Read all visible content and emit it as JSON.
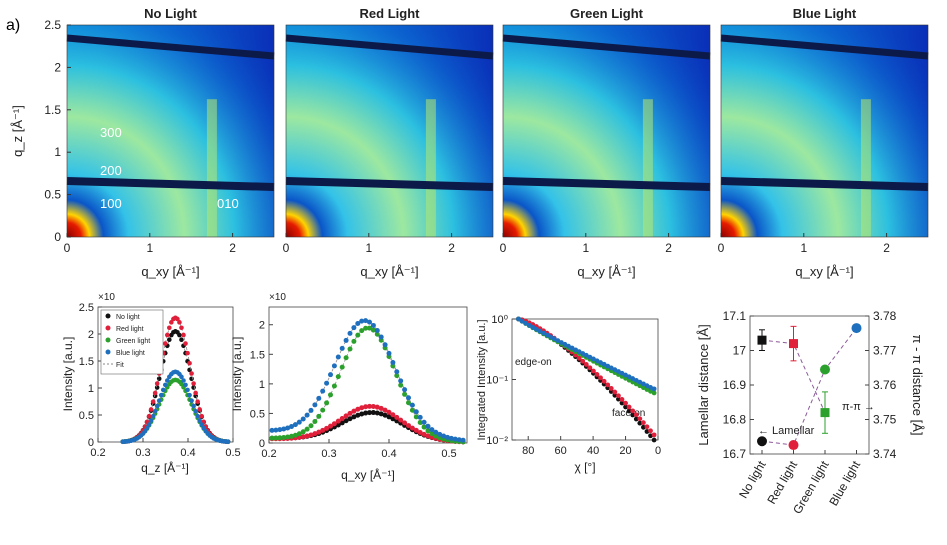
{
  "figure": {
    "panel_label": "a)",
    "heatmap_titles": [
      "No Light",
      "Red Light",
      "Green Light",
      "Blue Light"
    ],
    "heatmap_xlabel": "q_xy [Å⁻¹]",
    "heatmap_ylabel": "q_z [Å⁻¹]",
    "peak_labels": [
      "300",
      "200",
      "100",
      "010"
    ],
    "colors": {
      "no_light": "#111111",
      "red_light": "#e0203a",
      "green_light": "#2ca02c",
      "blue_light": "#1f6fbf",
      "fit": "#888888"
    }
  },
  "chart_data": [
    {
      "id": "giwaxs-maps",
      "type": "heatmap",
      "panels": [
        "No Light",
        "Red Light",
        "Green Light",
        "Blue Light"
      ],
      "xlabel": "q_xy [Å⁻¹]",
      "ylabel": "q_z [Å⁻¹]",
      "xlim": [
        0,
        2.5
      ],
      "ylim": [
        0,
        2.5
      ],
      "xticks": [
        "0",
        "1",
        "2"
      ],
      "yticks": [
        "0",
        "0.5",
        "1",
        "1.5",
        "2",
        "2.5"
      ],
      "annotations": [
        "300",
        "200",
        "100",
        "010"
      ]
    },
    {
      "id": "qz-linecut",
      "type": "scatter",
      "xlabel": "q_z [Å⁻¹]",
      "ylabel": "Intensity [a.u.]",
      "multiplier": "×10",
      "xlim": [
        0.2,
        0.5
      ],
      "ylim": [
        0,
        2.5
      ],
      "xticks": [
        "0.2",
        "0.3",
        "0.4",
        "0.5"
      ],
      "yticks": [
        "0",
        "0.5",
        "1",
        "1.5",
        "2",
        "2.5"
      ],
      "legend": [
        "No light",
        "Red light",
        "Green light",
        "Blue light",
        "Fit"
      ],
      "series": [
        {
          "name": "No light",
          "center": 0.372,
          "amplitude": 2.05,
          "width": 0.034
        },
        {
          "name": "Red light",
          "center": 0.372,
          "amplitude": 2.3,
          "width": 0.033
        },
        {
          "name": "Green light",
          "center": 0.372,
          "amplitude": 1.15,
          "width": 0.036
        },
        {
          "name": "Blue light",
          "center": 0.372,
          "amplitude": 1.3,
          "width": 0.035
        }
      ]
    },
    {
      "id": "qxy-linecut",
      "type": "scatter",
      "xlabel": "q_xy [Å⁻¹]",
      "ylabel": "Intensity [a.u.]",
      "multiplier": "×10",
      "xlim": [
        0.2,
        0.53
      ],
      "ylim": [
        0,
        2.3
      ],
      "xticks": [
        "0.2",
        "0.3",
        "0.4",
        "0.5"
      ],
      "yticks": [
        "0",
        "0.5",
        "1",
        "1.5",
        "2"
      ],
      "series": [
        {
          "name": "No light",
          "center": 0.372,
          "amplitude": 0.47,
          "width": 0.05,
          "baseline": 0.08
        },
        {
          "name": "Red light",
          "center": 0.37,
          "amplitude": 0.58,
          "width": 0.05,
          "baseline": 0.07
        },
        {
          "name": "Green light",
          "center": 0.365,
          "amplitude": 1.9,
          "width": 0.046,
          "baseline": 0.08
        },
        {
          "name": "Blue light",
          "center": 0.36,
          "amplitude": 1.95,
          "width": 0.05,
          "baseline": 0.2
        }
      ]
    },
    {
      "id": "pole-figure",
      "type": "scatter",
      "xlabel": "χ [°]",
      "ylabel": "Integrated Intensity [a.u.]",
      "xlim": [
        90,
        0
      ],
      "yscale": "log",
      "ylim": [
        0.01,
        1
      ],
      "xticks": [
        "80",
        "60",
        "40",
        "20",
        "0"
      ],
      "yticks": [
        "10⁻²",
        "10⁻¹",
        "10⁰"
      ],
      "annotations": [
        "edge-on",
        "face-on"
      ],
      "series": [
        {
          "name": "No light",
          "end_value": 0.009
        },
        {
          "name": "Red light",
          "end_value": 0.011
        },
        {
          "name": "Green light",
          "end_value": 0.06
        },
        {
          "name": "Blue light",
          "end_value": 0.07
        }
      ]
    },
    {
      "id": "d-spacing",
      "type": "scatter",
      "categories": [
        "No light",
        "Red light",
        "Green light",
        "Blue light"
      ],
      "ylabel_left": "Lamellar distance [Å]",
      "ylabel_right": "π - π distance [Å]",
      "ylim_left": [
        16.7,
        17.1
      ],
      "ylim_right": [
        3.74,
        3.78
      ],
      "yticks_left": [
        "16.7",
        "16.8",
        "16.9",
        "17",
        "17.1"
      ],
      "yticks_right": [
        "3.74",
        "3.75",
        "3.76",
        "3.77",
        "3.78"
      ],
      "annotations": [
        "← Lamellar",
        "π-π →"
      ],
      "lamellar": [
        16.737,
        16.726,
        16.945,
        17.065
      ],
      "pipi": [
        3.773,
        3.772,
        3.752,
        null
      ],
      "pipi_err": [
        0.003,
        0.005,
        0.006,
        null
      ]
    }
  ]
}
